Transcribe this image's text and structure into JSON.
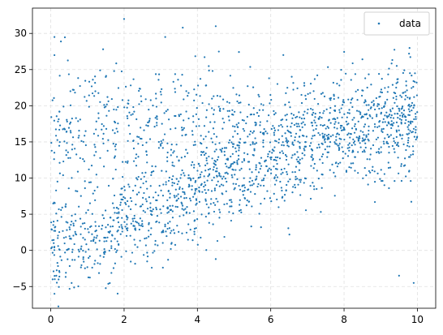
{
  "chart_data": {
    "type": "scatter",
    "title": "",
    "xlabel": "",
    "ylabel": "",
    "xlim": [
      -0.5,
      10.5
    ],
    "ylim": [
      -8,
      33.5
    ],
    "grid": true,
    "legend_placement": "top-right",
    "xticks": [
      0,
      2,
      4,
      6,
      8,
      10
    ],
    "yticks": [
      -5,
      0,
      5,
      10,
      15,
      20,
      25,
      30
    ],
    "colors": {
      "series": "#1f77b4",
      "grid": "#e0e0e0",
      "axes": "#000000"
    },
    "series": [
      {
        "name": "data",
        "n_points": 2000,
        "x_range": [
          0,
          10
        ],
        "description_of_distribution": "two overlapping clusters; one rising linearly from ~0 at x=0 to ~20 at x=10, another band centered near y~18 with wide spread",
        "sample_points": [
          [
            0.1,
            0.5
          ],
          [
            0.1,
            29.5
          ],
          [
            0.1,
            27.0
          ],
          [
            0.05,
            -4.0
          ],
          [
            0.1,
            -6.0
          ],
          [
            2.0,
            32.0
          ],
          [
            4.5,
            31.0
          ],
          [
            3.6,
            30.8
          ],
          [
            9.9,
            -4.5
          ],
          [
            4.5,
            -1.2
          ],
          [
            3.2,
            -1.3
          ],
          [
            9.5,
            -3.5
          ]
        ]
      }
    ]
  },
  "legend": {
    "label": "data"
  },
  "tick_labels": {
    "x": [
      "0",
      "2",
      "4",
      "6",
      "8",
      "10"
    ],
    "y": [
      "−5",
      "0",
      "5",
      "10",
      "15",
      "20",
      "25",
      "30"
    ]
  }
}
